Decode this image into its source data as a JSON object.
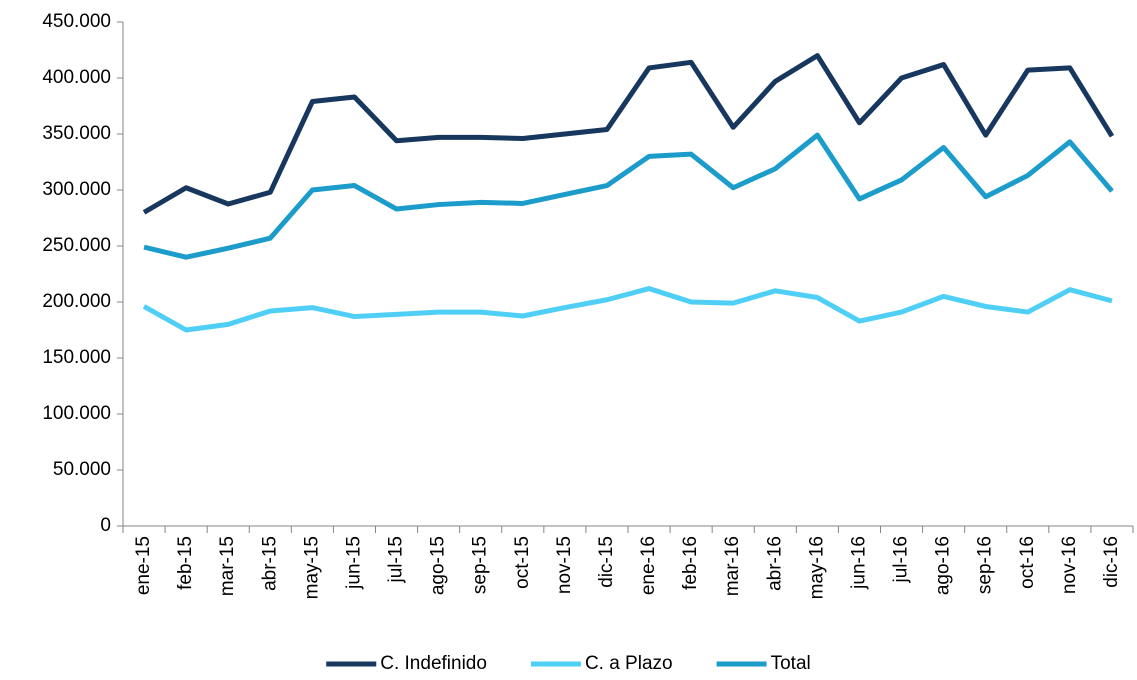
{
  "chart_data": {
    "type": "line",
    "categories": [
      "ene-15",
      "feb-15",
      "mar-15",
      "abr-15",
      "may-15",
      "jun-15",
      "jul-15",
      "ago-15",
      "sep-15",
      "oct-15",
      "nov-15",
      "dic-15",
      "ene-16",
      "feb-16",
      "mar-16",
      "abr-16",
      "may-16",
      "jun-16",
      "jul-16",
      "ago-16",
      "sep-16",
      "oct-16",
      "nov-16",
      "dic-16"
    ],
    "series": [
      {
        "name": "C. Indefinido",
        "color": "#17375e",
        "values": [
          280000,
          302000,
          287500,
          298000,
          379000,
          383000,
          344000,
          347000,
          347000,
          346000,
          350000,
          354000,
          409000,
          414000,
          356000,
          397000,
          420000,
          360000,
          400000,
          412000,
          349000,
          407000,
          409000,
          348000
        ]
      },
      {
        "name": "C. a Plazo",
        "color": "#4fcff6",
        "values": [
          196000,
          175000,
          180000,
          192000,
          195000,
          187000,
          189000,
          191000,
          191000,
          187500,
          195000,
          202000,
          212000,
          200000,
          199000,
          210000,
          204000,
          183000,
          191000,
          205000,
          196000,
          191000,
          211000,
          201000
        ]
      },
      {
        "name": "Total",
        "color": "#1b9ccb",
        "values": [
          249000,
          240000,
          248000,
          257000,
          300000,
          304000,
          283000,
          287000,
          289000,
          288000,
          296000,
          304000,
          330000,
          332000,
          302000,
          319000,
          349000,
          292000,
          309000,
          338000,
          294000,
          313000,
          343000,
          299000
        ]
      }
    ],
    "ylim": [
      0,
      450000
    ],
    "yticks": [
      0,
      {
        "value": 50000,
        "label": "50.000"
      },
      {
        "value": 100000,
        "label": "100.000"
      },
      {
        "value": 150000,
        "label": "150.000"
      },
      {
        "value": 200000,
        "label": "200.000"
      },
      {
        "value": 250000,
        "label": "250.000"
      },
      {
        "value": 300000,
        "label": "300.000"
      },
      {
        "value": 350000,
        "label": "350.000"
      },
      {
        "value": 400000,
        "label": "400.000"
      },
      {
        "value": 450000,
        "label": "450.000"
      }
    ],
    "grid": false,
    "legend": "bottom"
  }
}
